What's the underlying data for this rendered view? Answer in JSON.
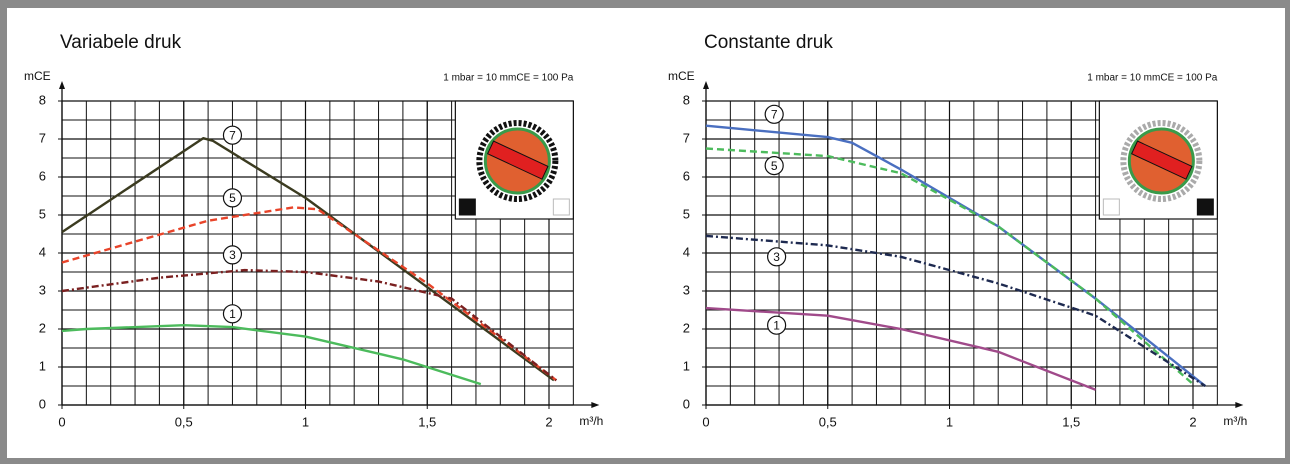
{
  "chart_data": [
    {
      "type": "line",
      "title": "Variabele druk",
      "note": "1 mbar = 10 mmCE = 100 Pa",
      "xlabel": "m³/h",
      "ylabel": "mCE",
      "xlim": [
        0,
        2.1
      ],
      "ylim": [
        0,
        8
      ],
      "xticks": [
        0,
        {
          "value": 0.5,
          "label": "0,5"
        },
        1,
        {
          "value": 1.5,
          "label": "1,5"
        },
        2
      ],
      "yticks": [
        0,
        1,
        2,
        3,
        4,
        5,
        6,
        7,
        8
      ],
      "grid": true,
      "series": [
        {
          "name": "7",
          "color": "#3b3b20",
          "dash": "solid",
          "x": [
            0,
            0.58,
            0.62,
            1.0,
            1.5,
            2.02
          ],
          "values": [
            4.55,
            7.02,
            6.95,
            5.45,
            3.1,
            0.65
          ]
        },
        {
          "name": "5",
          "color": "#e8442a",
          "dash": "dashed",
          "x": [
            0,
            0.3,
            0.6,
            0.95,
            1.05,
            1.5,
            2.03
          ],
          "values": [
            3.75,
            4.3,
            4.85,
            5.2,
            5.15,
            3.2,
            0.65
          ]
        },
        {
          "name": "3",
          "color": "#7a2020",
          "dash": "dashdot",
          "x": [
            0,
            0.4,
            0.75,
            1.0,
            1.3,
            1.6,
            2.03
          ],
          "values": [
            3.0,
            3.35,
            3.55,
            3.5,
            3.25,
            2.8,
            0.65
          ]
        },
        {
          "name": "1",
          "color": "#4cbb5c",
          "dash": "solid",
          "x": [
            0,
            0.1,
            0.5,
            0.7,
            1.0,
            1.4,
            1.72
          ],
          "values": [
            1.95,
            2.0,
            2.1,
            2.05,
            1.8,
            1.2,
            0.55
          ]
        }
      ]
    },
    {
      "type": "line",
      "title": "Constante druk",
      "note": "1 mbar = 10 mmCE = 100 Pa",
      "xlabel": "m³/h",
      "ylabel": "mCE",
      "xlim": [
        0,
        2.1
      ],
      "ylim": [
        0,
        8
      ],
      "xticks": [
        0,
        {
          "value": 0.5,
          "label": "0,5"
        },
        1,
        {
          "value": 1.5,
          "label": "1,5"
        },
        2
      ],
      "yticks": [
        0,
        1,
        2,
        3,
        4,
        5,
        6,
        7,
        8
      ],
      "grid": true,
      "series": [
        {
          "name": "7",
          "color": "#4a6fc0",
          "dash": "solid",
          "x": [
            0,
            0.5,
            0.6,
            0.8,
            1.2,
            1.6,
            2.05
          ],
          "values": [
            7.35,
            7.05,
            6.9,
            6.2,
            4.7,
            2.8,
            0.5
          ]
        },
        {
          "name": "5",
          "color": "#4cbb5c",
          "dash": "dashed",
          "x": [
            0,
            0.5,
            0.8,
            1.2,
            1.6,
            2.0
          ],
          "values": [
            6.75,
            6.55,
            6.1,
            4.7,
            2.8,
            0.55
          ]
        },
        {
          "name": "3",
          "color": "#1e2a50",
          "dash": "dashdot",
          "x": [
            0,
            0.5,
            0.8,
            1.2,
            1.6,
            2.05
          ],
          "values": [
            4.45,
            4.2,
            3.9,
            3.2,
            2.35,
            0.5
          ]
        },
        {
          "name": "1",
          "color": "#a04a8a",
          "dash": "solid",
          "x": [
            0,
            0.5,
            0.8,
            1.2,
            1.6
          ],
          "values": [
            2.55,
            2.35,
            2.0,
            1.4,
            0.4
          ]
        }
      ]
    }
  ]
}
